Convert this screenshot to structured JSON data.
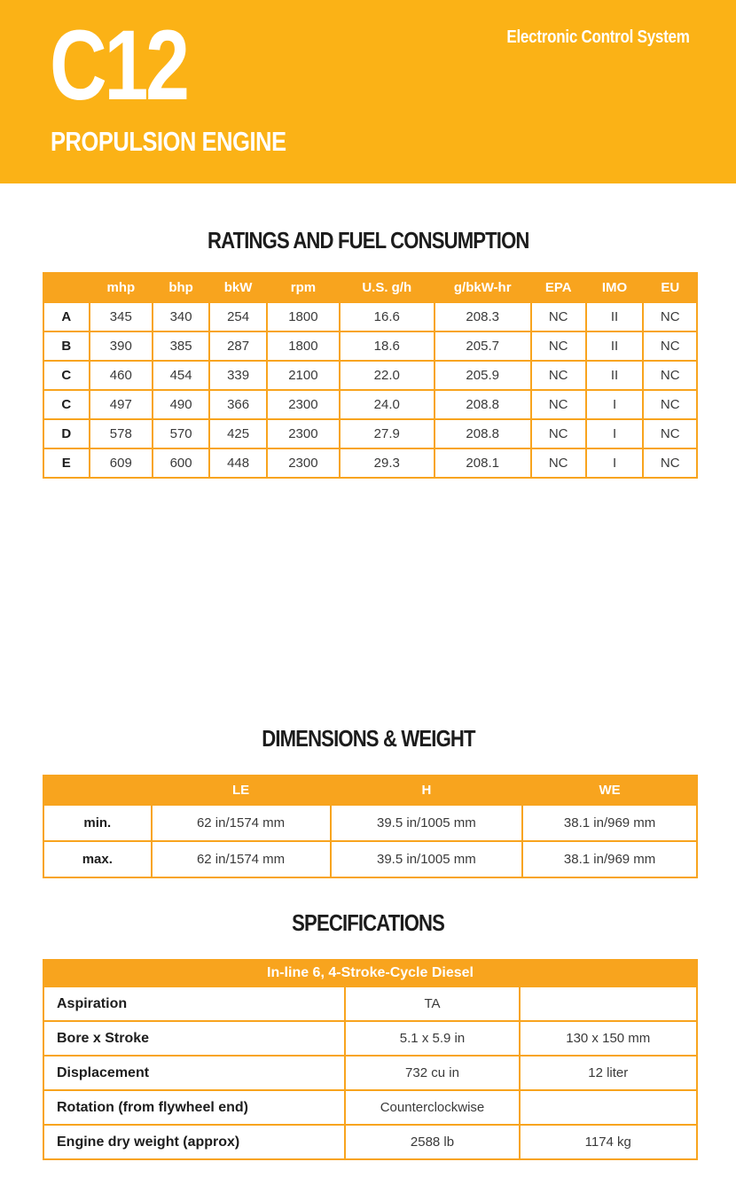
{
  "header": {
    "model": "C12",
    "subtitle": "PROPULSION ENGINE",
    "tagline": "Electronic Control System"
  },
  "colors": {
    "band_yellow": "#FBB216",
    "table_amber": "#F8A41E",
    "heading_text": "#1C1C1C",
    "cell_text": "#3A3A3A"
  },
  "ratings": {
    "title": "RATINGS AND FUEL CONSUMPTION",
    "columns": [
      "",
      "mhp",
      "bhp",
      "bkW",
      "rpm",
      "U.S. g/h",
      "g/bkW-hr",
      "EPA",
      "IMO",
      "EU"
    ],
    "rows": [
      {
        "label": "A",
        "values": [
          "345",
          "340",
          "254",
          "1800",
          "16.6",
          "208.3",
          "NC",
          "II",
          "NC"
        ]
      },
      {
        "label": "B",
        "values": [
          "390",
          "385",
          "287",
          "1800",
          "18.6",
          "205.7",
          "NC",
          "II",
          "NC"
        ]
      },
      {
        "label": "C",
        "values": [
          "460",
          "454",
          "339",
          "2100",
          "22.0",
          "205.9",
          "NC",
          "II",
          "NC"
        ]
      },
      {
        "label": "C",
        "values": [
          "497",
          "490",
          "366",
          "2300",
          "24.0",
          "208.8",
          "NC",
          "I",
          "NC"
        ]
      },
      {
        "label": "D",
        "values": [
          "578",
          "570",
          "425",
          "2300",
          "27.9",
          "208.8",
          "NC",
          "I",
          "NC"
        ]
      },
      {
        "label": "E",
        "values": [
          "609",
          "600",
          "448",
          "2300",
          "29.3",
          "208.1",
          "NC",
          "I",
          "NC"
        ]
      }
    ]
  },
  "dimensions": {
    "title": "DIMENSIONS & WEIGHT",
    "columns": [
      "",
      "LE",
      "H",
      "WE"
    ],
    "rows": [
      {
        "label": "min.",
        "values": [
          "62 in/1574 mm",
          "39.5 in/1005 mm",
          "38.1 in/969 mm"
        ]
      },
      {
        "label": "max.",
        "values": [
          "62 in/1574 mm",
          "39.5 in/1005 mm",
          "38.1 in/969 mm"
        ]
      }
    ]
  },
  "specifications": {
    "title": "SPECIFICATIONS",
    "table_header": "In-line 6, 4-Stroke-Cycle Diesel",
    "rows": [
      {
        "label": "Aspiration",
        "value_us": "TA",
        "value_metric": ""
      },
      {
        "label": "Bore x Stroke",
        "value_us": "5.1 x 5.9 in",
        "value_metric": "130 x 150 mm"
      },
      {
        "label": "Displacement",
        "value_us": "732 cu in",
        "value_metric": "12 liter"
      },
      {
        "label": "Rotation (from flywheel end)",
        "value_us": "Counterclockwise",
        "value_metric": ""
      },
      {
        "label": "Engine dry weight (approx)",
        "value_us": "2588 lb",
        "value_metric": "1174 kg"
      }
    ]
  },
  "chart_data": {
    "type": "table",
    "title": "RATINGS AND FUEL CONSUMPTION",
    "categories": [
      "A",
      "B",
      "C",
      "C",
      "D",
      "E"
    ],
    "series": [
      {
        "name": "mhp",
        "values": [
          345,
          390,
          460,
          497,
          578,
          609
        ]
      },
      {
        "name": "bhp",
        "values": [
          340,
          385,
          454,
          490,
          570,
          600
        ]
      },
      {
        "name": "bkW",
        "values": [
          254,
          287,
          339,
          366,
          425,
          448
        ]
      },
      {
        "name": "rpm",
        "values": [
          1800,
          1800,
          2100,
          2300,
          2300,
          2300
        ]
      },
      {
        "name": "U.S. g/h",
        "values": [
          16.6,
          18.6,
          22.0,
          24.0,
          27.9,
          29.3
        ]
      },
      {
        "name": "g/bkW-hr",
        "values": [
          208.3,
          205.7,
          205.9,
          208.8,
          208.8,
          208.1
        ]
      },
      {
        "name": "EPA",
        "values": [
          "NC",
          "NC",
          "NC",
          "NC",
          "NC",
          "NC"
        ]
      },
      {
        "name": "IMO",
        "values": [
          "II",
          "II",
          "II",
          "I",
          "I",
          "I"
        ]
      },
      {
        "name": "EU",
        "values": [
          "NC",
          "NC",
          "NC",
          "NC",
          "NC",
          "NC"
        ]
      }
    ]
  }
}
